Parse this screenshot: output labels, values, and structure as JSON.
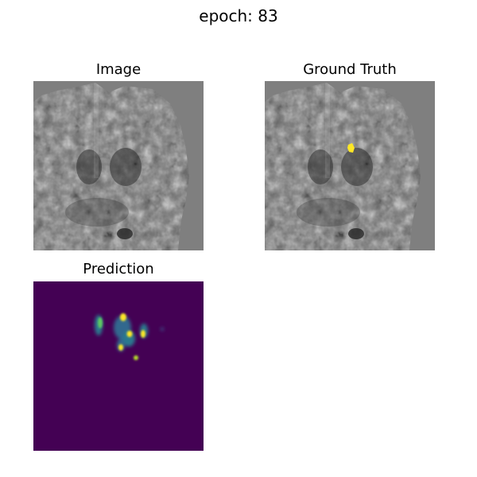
{
  "figure": {
    "suptitle": "epoch: 83"
  },
  "panels": [
    {
      "title": "Image",
      "content": "brain MRI slice (grayscale)"
    },
    {
      "title": "Ground Truth",
      "content": "brain MRI slice with yellow lesion mask overlay"
    },
    {
      "title": "Prediction",
      "content": "predicted segmentation heatmap (viridis)"
    }
  ],
  "colors": {
    "mri_background": "#7f7f7f",
    "mask_yellow": "#fde725",
    "viridis_low": "#440154",
    "viridis_mid": "#21918c",
    "viridis_high": "#fde725"
  }
}
